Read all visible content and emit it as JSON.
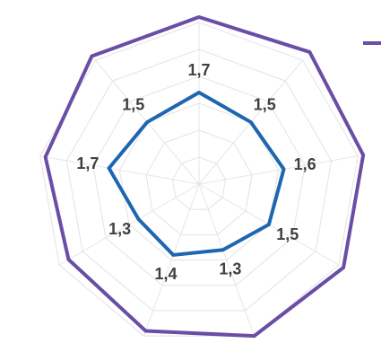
{
  "chart_data": {
    "type": "radar",
    "ylim": [
      0,
      3
    ],
    "yticks": [
      0.5,
      1,
      1.5,
      2,
      2.5,
      3
    ],
    "grid": true,
    "series": [
      {
        "color": "#6a4ea6",
        "values": [
          3.1,
          3.2,
          3.1,
          3.1,
          3.0,
          2.9,
          2.8,
          2.9,
          3.1
        ]
      },
      {
        "color": "#1f66b1",
        "values": [
          1.7,
          1.5,
          1.6,
          1.5,
          1.3,
          1.4,
          1.3,
          1.7,
          1.5
        ],
        "value_labels": [
          "1,7",
          "1,5",
          "1,6",
          "1,5",
          "1,3",
          "1,4",
          "1,3",
          "1,7",
          "1,5"
        ]
      }
    ]
  }
}
